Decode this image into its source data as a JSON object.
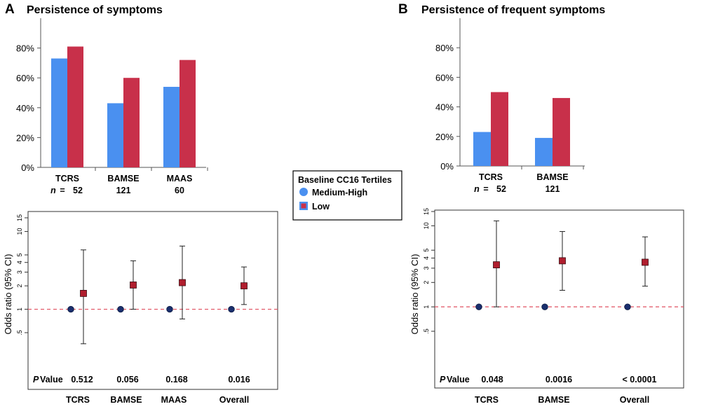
{
  "panels": {
    "A": {
      "letter": "A",
      "title": "Persistence of symptoms"
    },
    "B": {
      "letter": "B",
      "title": "Persistence of frequent symptoms"
    }
  },
  "legend": {
    "title": "Baseline CC16 Tertiles",
    "items": [
      {
        "label": "Medium-High",
        "color": "#4a90f0",
        "marker": "circle"
      },
      {
        "label": "Low",
        "color": "#c8304a",
        "marker": "square"
      }
    ]
  },
  "n_prefix": "n",
  "n_eq": "=",
  "p_value_label": {
    "italic": "P",
    "rest": " Value"
  },
  "colors": {
    "medium_high": "#4a90f0",
    "low": "#c8304a",
    "dot": "#1a2f6e",
    "square": "#b01e2e",
    "ref_line": "#e05060"
  },
  "chart_data": [
    {
      "id": "A_bar",
      "type": "bar",
      "categories": [
        "TCRS",
        "BAMSE",
        "MAAS"
      ],
      "n": [
        "52",
        "121",
        "60"
      ],
      "series": [
        {
          "name": "Medium-High",
          "values": [
            73,
            43,
            54
          ]
        },
        {
          "name": "Low",
          "values": [
            81,
            60,
            72
          ]
        }
      ],
      "ylim": [
        0,
        100
      ],
      "yticks": [
        "0%",
        "20%",
        "40%",
        "60%",
        "80%"
      ]
    },
    {
      "id": "B_bar",
      "type": "bar",
      "categories": [
        "TCRS",
        "BAMSE"
      ],
      "n": [
        "52",
        "121"
      ],
      "series": [
        {
          "name": "Medium-High",
          "values": [
            23,
            19
          ]
        },
        {
          "name": "Low",
          "values": [
            50,
            46
          ]
        }
      ],
      "ylim": [
        0,
        100
      ],
      "yticks": [
        "0%",
        "20%",
        "40%",
        "60%",
        "80%"
      ]
    },
    {
      "id": "A_forest",
      "type": "scatter",
      "ylabel": "Odds ratio (95% CI)",
      "yscale": "log",
      "yticks": [
        "1",
        "2",
        "3",
        "4",
        "5",
        "10",
        "15"
      ],
      "ytick_extra": ".5",
      "categories": [
        "TCRS",
        "BAMSE",
        "MAAS",
        "Overall"
      ],
      "or": [
        1.6,
        2.05,
        2.2,
        2.0
      ],
      "ci_low": [
        0.36,
        1.0,
        0.75,
        1.15
      ],
      "ci_high": [
        5.8,
        4.2,
        6.5,
        3.5
      ],
      "p_values": [
        "0.512",
        "0.056",
        "0.168",
        "0.016"
      ],
      "reference": 1
    },
    {
      "id": "B_forest",
      "type": "scatter",
      "ylabel": "Odds ratio (95% CI)",
      "yscale": "log",
      "yticks": [
        "1",
        "2",
        "3",
        "4",
        "5",
        "10",
        "15"
      ],
      "ytick_extra": ".5",
      "categories": [
        "TCRS",
        "BAMSE",
        "Overall"
      ],
      "or": [
        3.3,
        3.7,
        3.55
      ],
      "ci_low": [
        1.0,
        1.6,
        1.8
      ],
      "ci_high": [
        11.5,
        8.5,
        7.3
      ],
      "p_values": [
        "0.048",
        "0.0016",
        "< 0.0001"
      ],
      "reference": 1
    }
  ]
}
